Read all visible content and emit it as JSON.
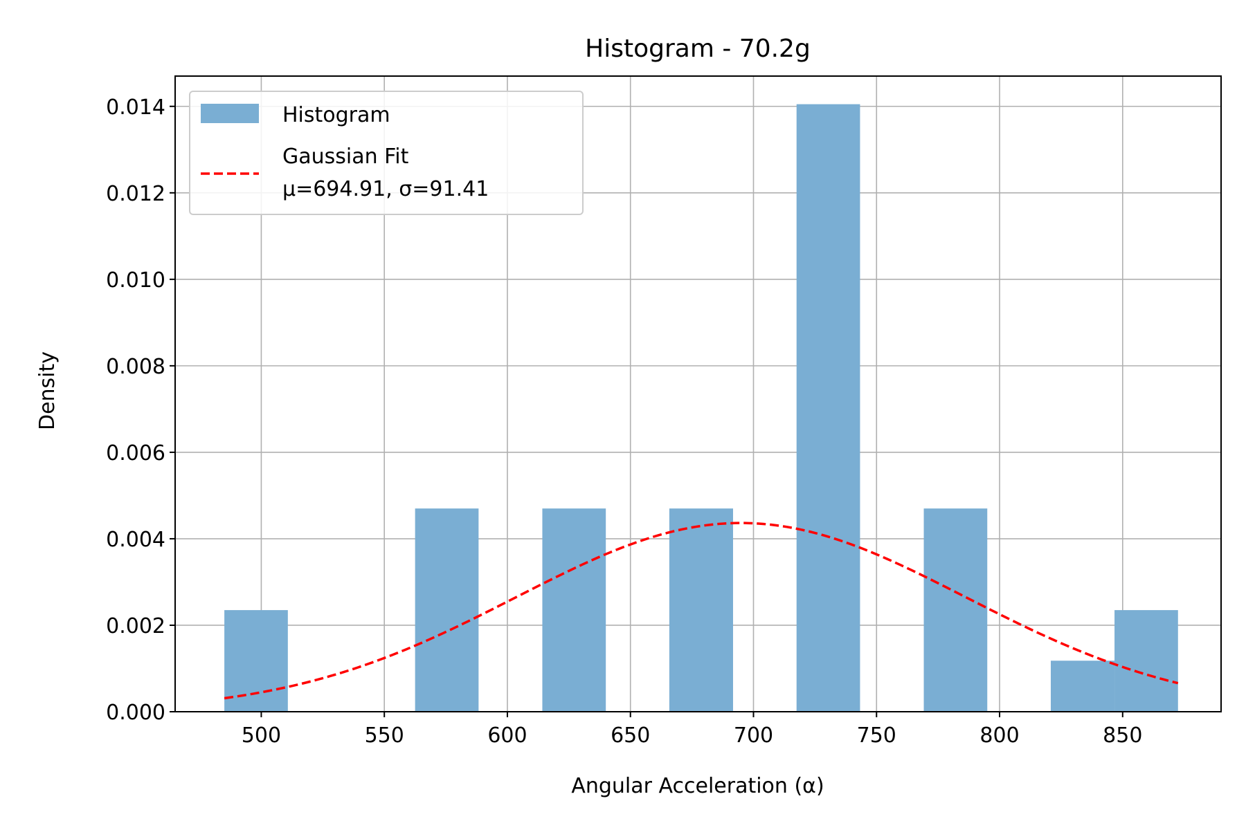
{
  "chart_data": {
    "type": "bar",
    "title": "Histogram - 70.2g",
    "xlabel": "Angular Acceleration (α)",
    "ylabel": "Density",
    "xlim": [
      465,
      890
    ],
    "ylim": [
      0,
      0.0147
    ],
    "xticks": [
      500,
      550,
      600,
      650,
      700,
      750,
      800,
      850
    ],
    "yticks": [
      0.0,
      0.002,
      0.004,
      0.006,
      0.008,
      0.01,
      0.012,
      0.014
    ],
    "ytick_labels": [
      "0.000",
      "0.002",
      "0.004",
      "0.006",
      "0.008",
      "0.010",
      "0.012",
      "0.014"
    ],
    "grid": true,
    "legend_position": "upper-left",
    "histogram": {
      "name": "Histogram",
      "color": "#7aaed3",
      "bins": [
        {
          "x0": 485.0,
          "x1": 510.8,
          "density": 0.00235
        },
        {
          "x0": 562.5,
          "x1": 588.3,
          "density": 0.0047
        },
        {
          "x0": 614.2,
          "x1": 640.0,
          "density": 0.0047
        },
        {
          "x0": 665.8,
          "x1": 691.7,
          "density": 0.0047
        },
        {
          "x0": 717.5,
          "x1": 743.3,
          "density": 0.01405
        },
        {
          "x0": 769.2,
          "x1": 795.0,
          "density": 0.0047
        },
        {
          "x0": 820.8,
          "x1": 846.7,
          "density": 0.00118
        },
        {
          "x0": 846.7,
          "x1": 872.5,
          "density": 0.00235
        }
      ]
    },
    "fit": {
      "name_line1": "Gaussian Fit",
      "name_line2": "μ=694.91, σ=91.41",
      "mu": 694.91,
      "sigma": 91.41,
      "x_range": [
        485,
        872.5
      ],
      "color": "#ff0000",
      "style": "dashed"
    }
  }
}
